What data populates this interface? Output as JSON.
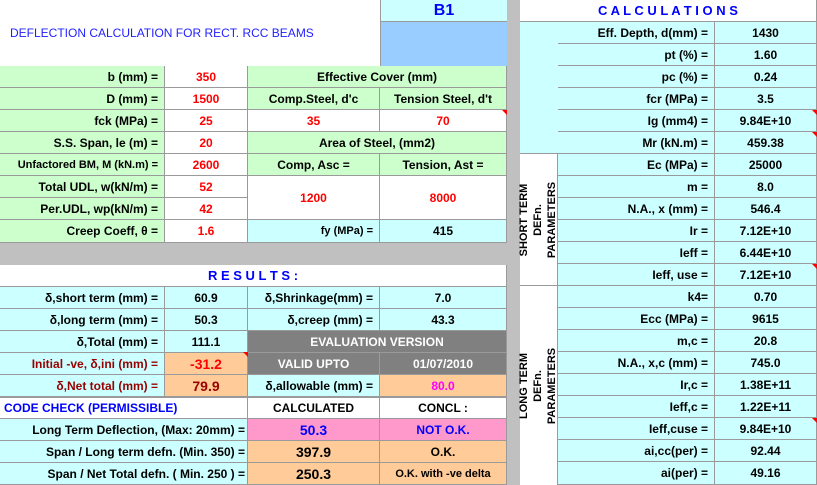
{
  "title": "DEFLECTION CALCULATION FOR RECT. RCC BEAMS",
  "beam_id": "B1",
  "inputs": {
    "b_label": "b (mm) =",
    "b": "350",
    "D_label": "D (mm) =",
    "D": "1500",
    "fck_label": "fck (MPa) =",
    "fck": "25",
    "span_label": "S.S. Span, le (m) =",
    "span": "20",
    "bm_label": "Unfactored BM, M (kN.m) =",
    "bm": "2600",
    "udl_label": "Total UDL, w(kN/m) =",
    "udl": "52",
    "perudl_label": "Per.UDL, wp(kN/m) =",
    "perudl": "42",
    "creep_label": "Creep Coeff, θ =",
    "creep": "1.6"
  },
  "cover": {
    "header": "Effective Cover (mm)",
    "comp_label": "Comp.Steel, d'c",
    "comp": "35",
    "tens_label": "Tension Steel, d't",
    "tens": "70"
  },
  "steel": {
    "header": "Area of  Steel, (mm2)",
    "comp_label": "Comp, Asc =",
    "comp": "1200",
    "tens_label": "Tension, Ast  =",
    "tens": "8000",
    "fy_label": "fy (MPa) =",
    "fy": "415"
  },
  "results": {
    "header": "R E S U L T S :",
    "short_label": "δ,short term (mm) =",
    "short": "60.9",
    "long_label": "δ,long term (mm) =",
    "long": "50.3",
    "total_label": "δ,Total (mm) =",
    "total": "111.1",
    "ini_label": "Initial -ve, δ,ini (mm) =",
    "ini": "-31.2",
    "net_label": "δ,Net total (mm) =",
    "net": "79.9",
    "shrink_label": "δ,Shrinkage(mm) =",
    "shrink": "7.0",
    "creepd_label": "δ,creep (mm) =",
    "creepd": "43.3",
    "eval": "EVALUATION VERSION",
    "valid_label": "VALID UPTO",
    "valid_date": "01/07/2010",
    "allow_label": "δ,allowable (mm) =",
    "allow": "80.0"
  },
  "code_check": {
    "header": "CODE CHECK  (PERMISSIBLE)",
    "calc_header": "CALCULATED",
    "concl_header": "CONCL :",
    "rows": [
      {
        "label": "Long Term Deflection,  (Max: 20mm) =",
        "value": "50.3",
        "concl": "NOT O.K."
      },
      {
        "label": "Span / Long term defn. (Min. 350) =",
        "value": "397.9",
        "concl": "O.K."
      },
      {
        "label": "Span / Net Total defn. ( Min. 250 ) =",
        "value": "250.3",
        "concl": "O.K. with -ve delta"
      }
    ]
  },
  "calc": {
    "header": "C A L C U L A T I O N S",
    "rows": [
      {
        "label": "Eff. Depth, d(mm) =",
        "value": "1430"
      },
      {
        "label": "pt (%) =",
        "value": "1.60"
      },
      {
        "label": "pc (%) =",
        "value": "0.24"
      },
      {
        "label": "fcr (MPa) =",
        "value": "3.5"
      },
      {
        "label": "Ig (mm4) =",
        "value": "9.84E+10"
      },
      {
        "label": "Mr (kN.m) =",
        "value": "459.38"
      }
    ],
    "short_title": "SHORT TERM DEFn. PARAMETERS",
    "short_rows": [
      {
        "label": "Ec (MPa) =",
        "value": "25000"
      },
      {
        "label": "m =",
        "value": "8.0"
      },
      {
        "label": "N.A., x (mm) =",
        "value": "546.4"
      },
      {
        "label": "Ir =",
        "value": "7.12E+10"
      },
      {
        "label": "Ieff =",
        "value": "6.44E+10"
      },
      {
        "label": "Ieff, use =",
        "value": "7.12E+10"
      }
    ],
    "long_title": "LONG TERM DEFn. PARAMETERS",
    "long_rows": [
      {
        "label": "k4=",
        "value": "0.70"
      },
      {
        "label": "Ecc (MPa) =",
        "value": "9615"
      },
      {
        "label": "m,c =",
        "value": "20.8"
      },
      {
        "label": "N.A., x,c (mm) =",
        "value": "745.0"
      },
      {
        "label": "Ir,c =",
        "value": "1.38E+11"
      },
      {
        "label": "Ieff,c =",
        "value": "1.22E+11"
      },
      {
        "label": "Ieff,cuse =",
        "value": "9.84E+10"
      },
      {
        "label": "ai,cc(per) =",
        "value": "92.44"
      },
      {
        "label": "ai(per) =",
        "value": "49.16"
      }
    ]
  }
}
